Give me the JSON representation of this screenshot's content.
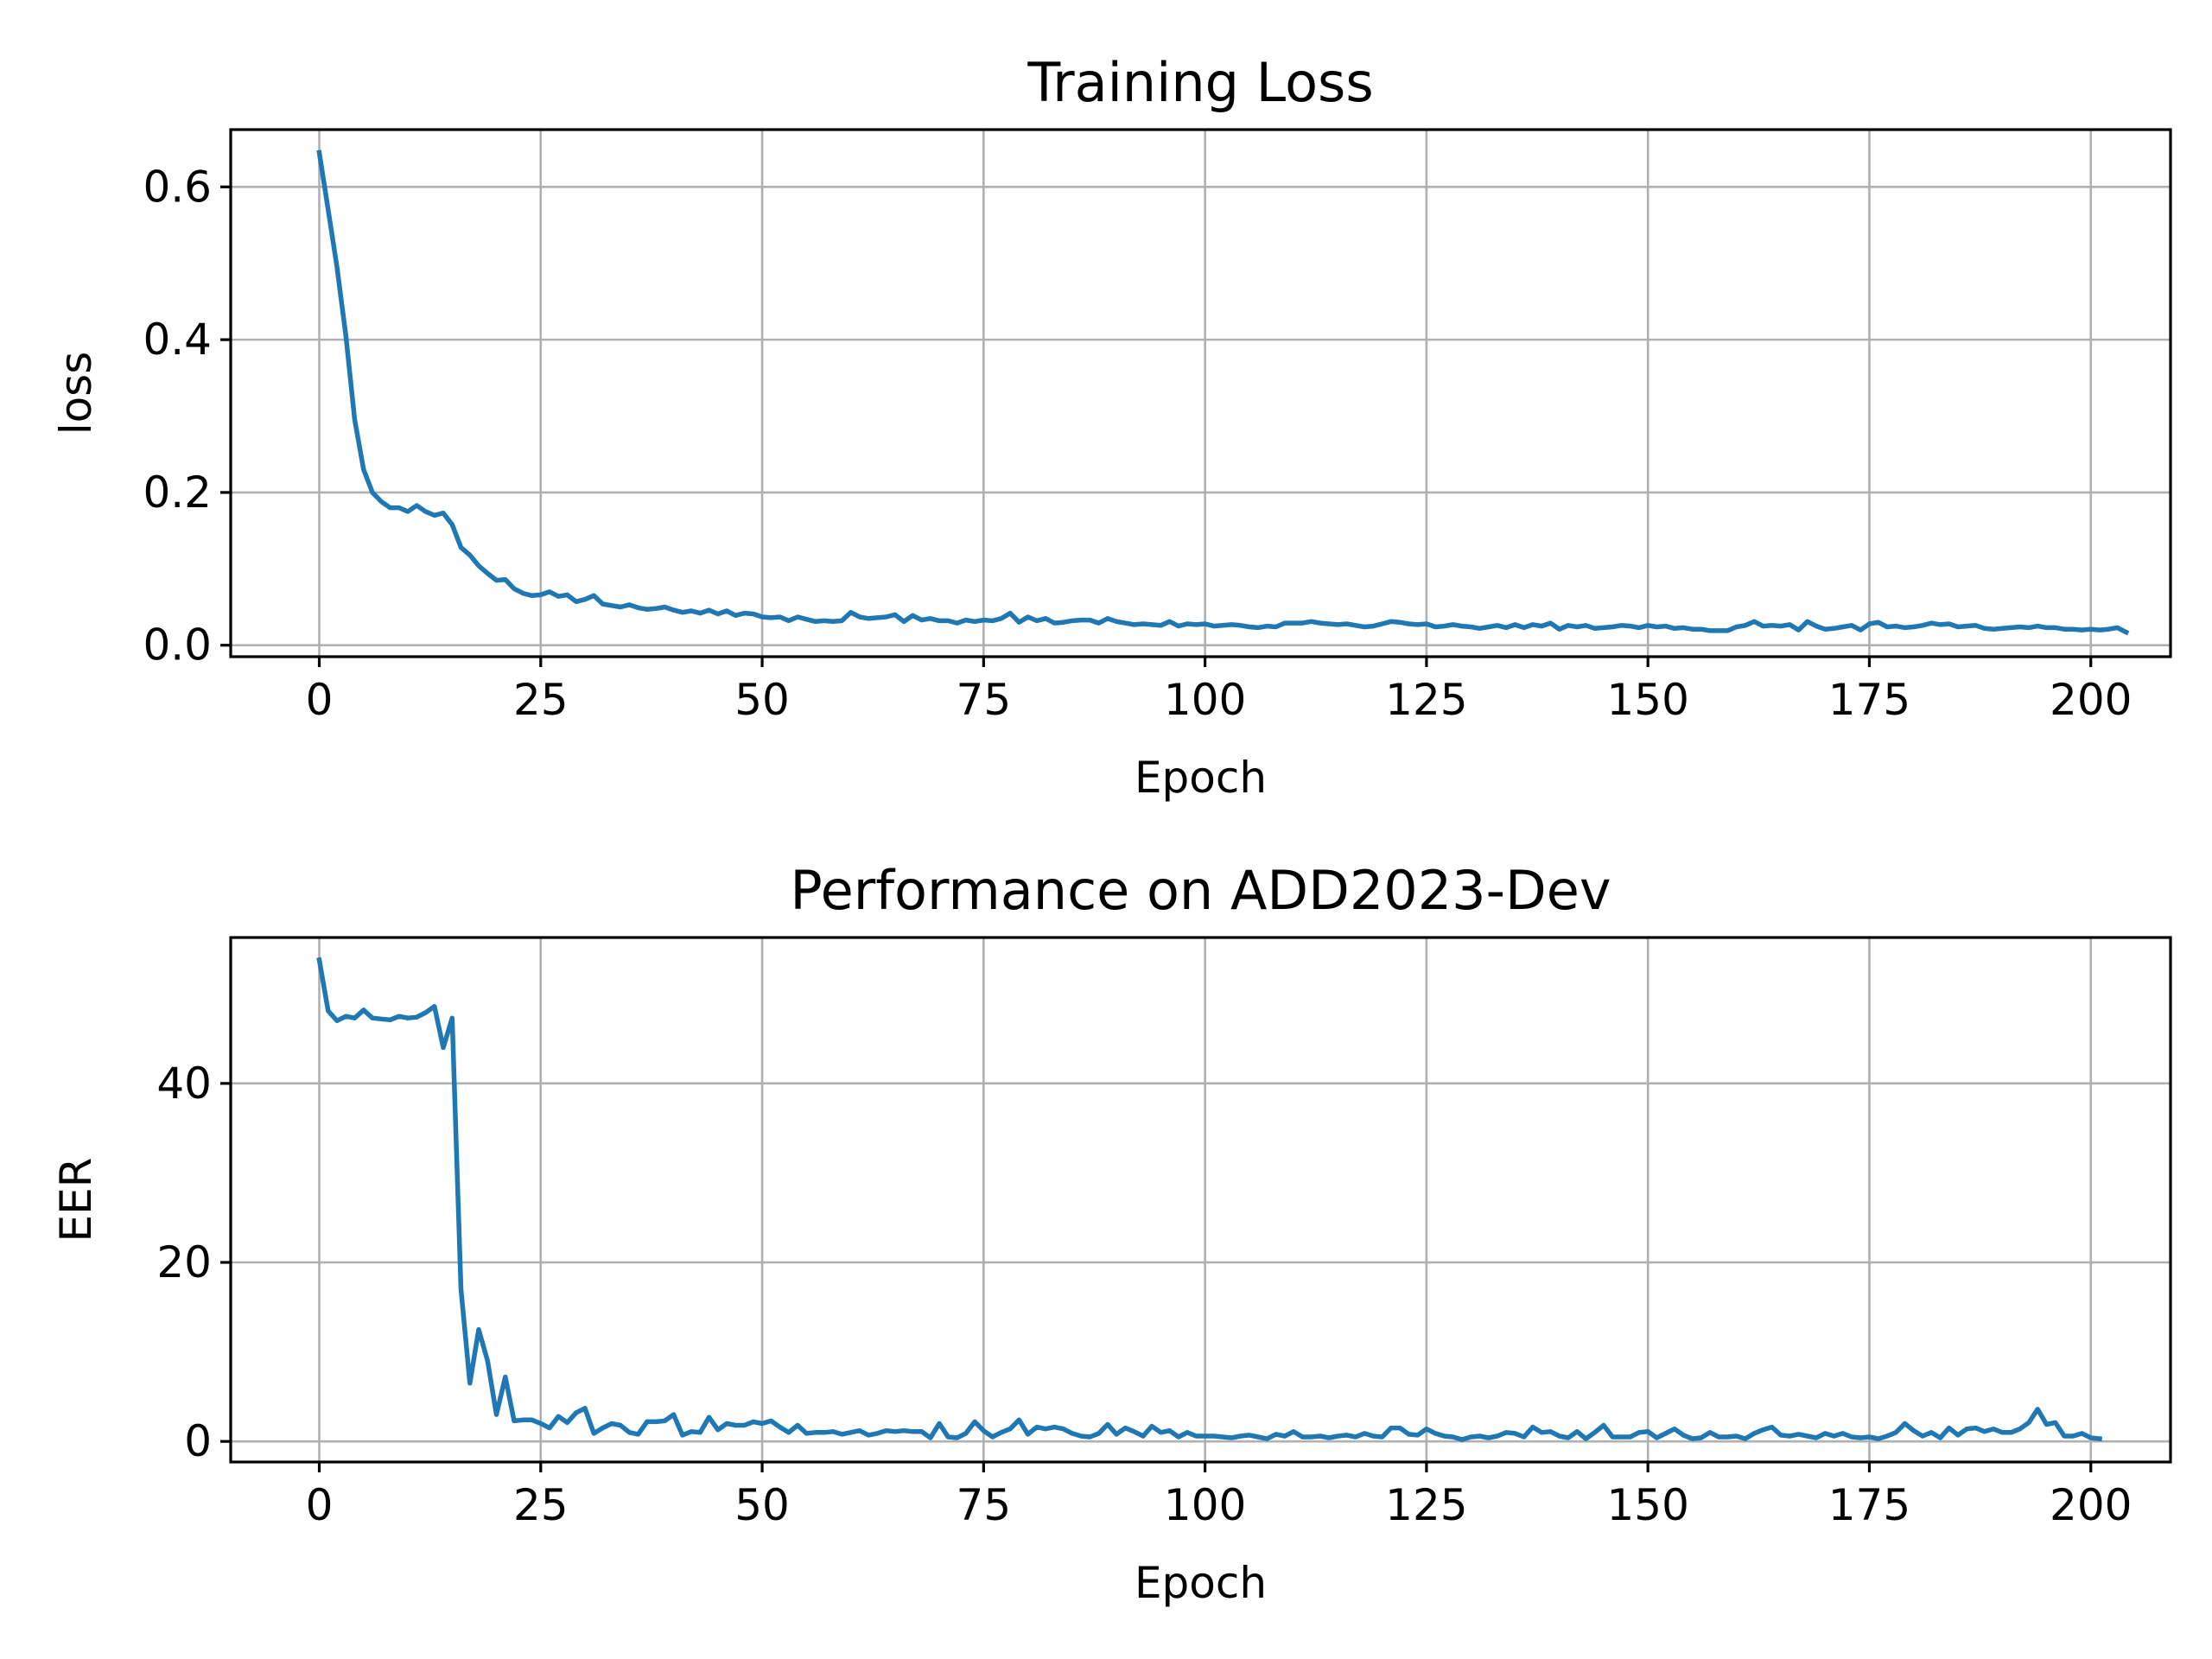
{
  "chart_data": [
    {
      "type": "line",
      "title": "Training Loss",
      "xlabel": "Epoch",
      "ylabel": "loss",
      "xlim": [
        -10,
        209
      ],
      "ylim": [
        -0.015,
        0.675
      ],
      "xticks": [
        0,
        25,
        50,
        75,
        100,
        125,
        150,
        175,
        200
      ],
      "yticks": [
        0.0,
        0.2,
        0.4,
        0.6
      ],
      "ytick_labels": [
        "0.0",
        "0.2",
        "0.4",
        "0.6"
      ],
      "grid": true,
      "series": [
        {
          "name": "loss",
          "values": [
            0.645,
            0.57,
            0.495,
            0.405,
            0.295,
            0.23,
            0.2,
            0.188,
            0.18,
            0.18,
            0.175,
            0.183,
            0.175,
            0.17,
            0.173,
            0.158,
            0.128,
            0.118,
            0.104,
            0.094,
            0.085,
            0.086,
            0.074,
            0.068,
            0.065,
            0.066,
            0.07,
            0.064,
            0.066,
            0.057,
            0.06,
            0.065,
            0.054,
            0.052,
            0.05,
            0.053,
            0.049,
            0.047,
            0.048,
            0.05,
            0.046,
            0.043,
            0.045,
            0.042,
            0.046,
            0.041,
            0.045,
            0.039,
            0.042,
            0.041,
            0.037,
            0.036,
            0.037,
            0.032,
            0.037,
            0.034,
            0.031,
            0.032,
            0.031,
            0.032,
            0.043,
            0.037,
            0.035,
            0.036,
            0.037,
            0.04,
            0.031,
            0.039,
            0.033,
            0.035,
            0.032,
            0.032,
            0.029,
            0.033,
            0.031,
            0.033,
            0.032,
            0.035,
            0.042,
            0.03,
            0.037,
            0.032,
            0.035,
            0.029,
            0.03,
            0.032,
            0.033,
            0.033,
            0.029,
            0.035,
            0.031,
            0.029,
            0.027,
            0.028,
            0.027,
            0.026,
            0.031,
            0.025,
            0.028,
            0.027,
            0.028,
            0.025,
            0.026,
            0.027,
            0.026,
            0.024,
            0.023,
            0.025,
            0.024,
            0.029,
            0.029,
            0.029,
            0.031,
            0.029,
            0.028,
            0.027,
            0.028,
            0.026,
            0.024,
            0.025,
            0.028,
            0.031,
            0.03,
            0.028,
            0.027,
            0.028,
            0.024,
            0.025,
            0.027,
            0.025,
            0.024,
            0.022,
            0.024,
            0.026,
            0.023,
            0.027,
            0.023,
            0.027,
            0.025,
            0.029,
            0.021,
            0.026,
            0.024,
            0.026,
            0.022,
            0.023,
            0.024,
            0.026,
            0.025,
            0.023,
            0.026,
            0.024,
            0.025,
            0.022,
            0.023,
            0.021,
            0.021,
            0.019,
            0.019,
            0.019,
            0.024,
            0.026,
            0.031,
            0.025,
            0.026,
            0.025,
            0.027,
            0.02,
            0.031,
            0.025,
            0.021,
            0.022,
            0.024,
            0.026,
            0.02,
            0.028,
            0.03,
            0.024,
            0.025,
            0.023,
            0.024,
            0.026,
            0.029,
            0.027,
            0.028,
            0.024,
            0.025,
            0.026,
            0.022,
            0.021,
            0.022,
            0.023,
            0.024,
            0.023,
            0.025,
            0.023,
            0.023,
            0.021,
            0.021,
            0.02,
            0.021,
            0.02,
            0.021,
            0.023,
            0.017
          ]
        }
      ]
    },
    {
      "type": "line",
      "title": "Performance on ADD2023-Dev",
      "xlabel": "Epoch",
      "ylabel": "EER",
      "xlim": [
        -10,
        209
      ],
      "ylim": [
        -2.3,
        56.3
      ],
      "xticks": [
        0,
        25,
        50,
        75,
        100,
        125,
        150,
        175,
        200
      ],
      "yticks": [
        0,
        20,
        40
      ],
      "ytick_labels": [
        "0",
        "20",
        "40"
      ],
      "grid": true,
      "series": [
        {
          "name": "EER",
          "values": [
            53.8,
            48.1,
            47.0,
            47.5,
            47.3,
            48.2,
            47.3,
            47.2,
            47.1,
            47.5,
            47.3,
            47.4,
            47.9,
            48.6,
            44.0,
            47.3,
            17.0,
            6.5,
            12.5,
            9.0,
            3.0,
            7.2,
            2.3,
            2.4,
            2.4,
            2.0,
            1.5,
            2.8,
            2.1,
            3.2,
            3.7,
            0.9,
            1.5,
            2.0,
            1.8,
            1.0,
            0.8,
            2.2,
            2.2,
            2.3,
            3.0,
            0.7,
            1.1,
            1.0,
            2.7,
            1.3,
            2.0,
            1.8,
            1.8,
            2.2,
            2.0,
            2.3,
            1.6,
            1.0,
            1.8,
            0.9,
            1.0,
            1.0,
            1.1,
            0.8,
            1.0,
            1.2,
            0.7,
            0.9,
            1.2,
            1.1,
            1.2,
            1.1,
            1.1,
            0.4,
            2.0,
            0.5,
            0.4,
            0.9,
            2.2,
            1.2,
            0.5,
            1.0,
            1.4,
            2.4,
            0.8,
            1.6,
            1.4,
            1.6,
            1.4,
            0.9,
            0.6,
            0.5,
            0.9,
            1.9,
            0.8,
            1.5,
            1.1,
            0.6,
            1.7,
            1.0,
            1.2,
            0.5,
            1.0,
            0.6,
            0.6,
            0.6,
            0.5,
            0.4,
            0.6,
            0.7,
            0.5,
            0.3,
            0.8,
            0.6,
            1.1,
            0.5,
            0.5,
            0.6,
            0.4,
            0.6,
            0.7,
            0.5,
            0.9,
            0.6,
            0.5,
            1.5,
            1.5,
            0.8,
            0.7,
            1.4,
            0.9,
            0.6,
            0.5,
            0.2,
            0.5,
            0.6,
            0.4,
            0.6,
            1.0,
            0.9,
            0.5,
            1.6,
            1.0,
            1.1,
            0.6,
            0.4,
            1.1,
            0.3,
            1.0,
            1.8,
            0.5,
            0.5,
            0.5,
            1.0,
            1.1,
            0.4,
            0.9,
            1.4,
            0.7,
            0.3,
            0.4,
            1.0,
            0.5,
            0.5,
            0.6,
            0.3,
            0.9,
            1.3,
            1.6,
            0.7,
            0.6,
            0.8,
            0.6,
            0.4,
            0.9,
            0.6,
            0.9,
            0.5,
            0.4,
            0.5,
            0.3,
            0.6,
            1.0,
            2.0,
            1.2,
            0.6,
            1.0,
            0.4,
            1.5,
            0.7,
            1.4,
            1.5,
            1.1,
            1.4,
            1.0,
            1.0,
            1.4,
            2.1,
            3.6,
            1.9,
            2.1,
            0.6,
            0.6,
            0.9,
            0.4,
            0.3
          ]
        }
      ]
    }
  ]
}
